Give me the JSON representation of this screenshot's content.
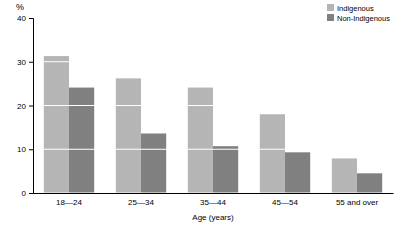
{
  "chart_data": {
    "type": "bar",
    "y_label": "%",
    "x_label": "Age (years)",
    "categories": [
      "18—24",
      "25—34",
      "35—44",
      "45—54",
      "55 and over"
    ],
    "series": [
      {
        "name": "Indigenous",
        "color": "#b5b5b5",
        "values": [
          31.3,
          26.2,
          24.1,
          18.0,
          7.9
        ]
      },
      {
        "name": "Non-Indigenous",
        "color": "#808080",
        "values": [
          24.1,
          13.6,
          10.7,
          9.3,
          4.5
        ]
      }
    ],
    "ylim": [
      0,
      40
    ],
    "yticks": [
      0,
      10,
      20,
      30,
      40
    ],
    "grid": true,
    "legend": "top right"
  }
}
